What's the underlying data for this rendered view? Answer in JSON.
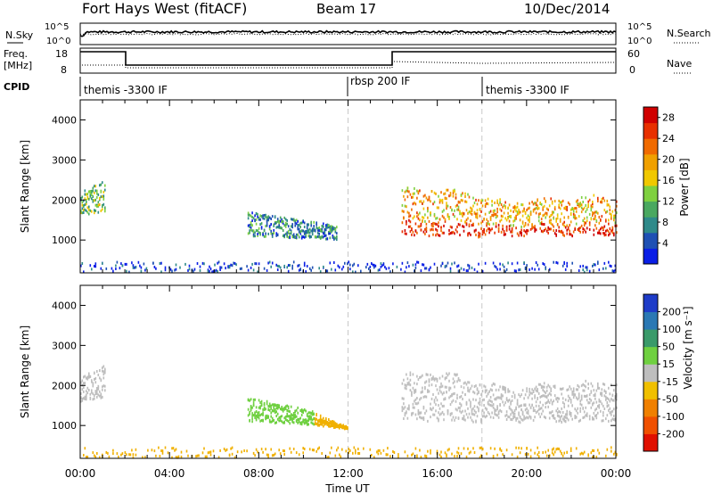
{
  "header": {
    "station": "Fort Hays West (fitACF)",
    "beam": "Beam 17",
    "date": "10/Dec/2014"
  },
  "summary_panels": {
    "nsky_label": "N.Sky",
    "nsearch_label": "N.Search",
    "noise_ticks": [
      "10^5",
      "10^0"
    ],
    "freq_label": "Freq.",
    "freq_unit": "[MHz]",
    "freq_ticks": [
      "18",
      "8"
    ],
    "nave_label": "Nave",
    "nave_ticks": [
      "60",
      "0"
    ],
    "cpid_label": "CPID",
    "cpid_segments": [
      {
        "label": "themis -3300 IF",
        "start_hour": 0,
        "end_hour": 12
      },
      {
        "label": "rbsp 200 IF",
        "start_hour": 12,
        "end_hour": 18
      },
      {
        "label": "themis -3300 IF",
        "start_hour": 18,
        "end_hour": 24
      }
    ]
  },
  "chart_data": [
    {
      "type": "heatmap",
      "name": "power-panel",
      "ylabel": "Slant Range [km]",
      "xlabel": "Time UT",
      "xlim": [
        0,
        24
      ],
      "ylim": [
        180,
        4500
      ],
      "x_ticks": [
        "00:00",
        "04:00",
        "08:00",
        "12:00",
        "16:00",
        "20:00",
        "00:00"
      ],
      "y_ticks": [
        1000,
        2000,
        3000,
        4000
      ],
      "colorbar": {
        "label": "Power [dB]",
        "ticks": [
          "4",
          "8",
          "12",
          "16",
          "20",
          "24",
          "28"
        ],
        "colors": [
          "#0a1ee6",
          "#1e50b4",
          "#2f8a8a",
          "#4aa860",
          "#7fd040",
          "#f0c800",
          "#f0a000",
          "#f06a00",
          "#e83000",
          "#d00000"
        ]
      },
      "echo_regions": [
        {
          "t_start": 0.0,
          "t_end": 1.1,
          "r_low": 1700,
          "r_high": 2500,
          "level": 0.45
        },
        {
          "t_start": 7.5,
          "t_end": 11.5,
          "r_low": 1100,
          "r_high": 1700,
          "level": 0.3
        },
        {
          "t_start": 14.4,
          "t_end": 24.0,
          "r_low": 1100,
          "r_high": 2300,
          "level": 0.7
        },
        {
          "t_start": 0.0,
          "t_end": 24.0,
          "r_low": 200,
          "r_high": 450,
          "level": 0.1
        }
      ]
    },
    {
      "type": "heatmap",
      "name": "velocity-panel",
      "ylabel": "Slant Range [km]",
      "xlabel": "Time UT",
      "xlim": [
        0,
        24
      ],
      "ylim": [
        180,
        4500
      ],
      "x_ticks": [
        "00:00",
        "04:00",
        "08:00",
        "12:00",
        "16:00",
        "20:00",
        "00:00"
      ],
      "y_ticks": [
        1000,
        2000,
        3000,
        4000
      ],
      "colorbar": {
        "label": "Velocity [m s⁻¹]",
        "ticks": [
          "200",
          "100",
          "50",
          "15",
          "-15",
          "-50",
          "-100",
          "-200"
        ],
        "colors": [
          "#1e3cc8",
          "#2a78b4",
          "#3a9a6a",
          "#6fd040",
          "#bebebe",
          "#f0c000",
          "#f08000",
          "#f05000",
          "#e01000"
        ]
      },
      "echo_regions": [
        {
          "t_start": 0.0,
          "t_end": 1.1,
          "r_low": 1700,
          "r_high": 2500,
          "value": "gray"
        },
        {
          "t_start": 7.5,
          "t_end": 10.5,
          "r_low": 1100,
          "r_high": 1700,
          "value": "green"
        },
        {
          "t_start": 10.5,
          "t_end": 12.0,
          "r_low": 1000,
          "r_high": 1300,
          "value": "orange"
        },
        {
          "t_start": 14.4,
          "t_end": 24.0,
          "r_low": 1100,
          "r_high": 2300,
          "value": "gray"
        },
        {
          "t_start": 0.0,
          "t_end": 24.0,
          "r_low": 200,
          "r_high": 450,
          "value": "orange"
        }
      ]
    }
  ]
}
